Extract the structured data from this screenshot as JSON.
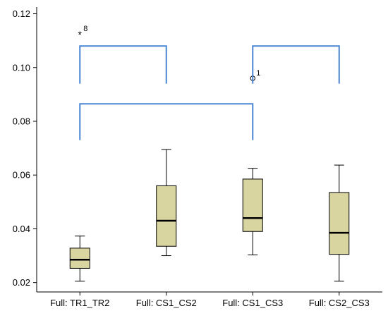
{
  "chart_data": {
    "type": "box",
    "title": "",
    "xlabel": "",
    "ylabel": "",
    "ylim": [
      0.0165,
      0.1225
    ],
    "yticks": [
      0.02,
      0.04,
      0.06,
      0.08,
      0.1,
      0.12
    ],
    "ytick_labels": [
      "0.02",
      "0.04",
      "0.06",
      "0.08",
      "0.10",
      "0.12"
    ],
    "categories": [
      "Full: TR1_TR2",
      "Full: CS1_CS2",
      "Full: CS1_CS3",
      "Full: CS2_CS3"
    ],
    "boxes": [
      {
        "min": 0.0205,
        "q1": 0.0253,
        "median": 0.0285,
        "q3": 0.0328,
        "max": 0.0373
      },
      {
        "min": 0.03,
        "q1": 0.0335,
        "median": 0.043,
        "q3": 0.056,
        "max": 0.0695
      },
      {
        "min": 0.0303,
        "q1": 0.039,
        "median": 0.044,
        "q3": 0.0585,
        "max": 0.0625
      },
      {
        "min": 0.0205,
        "q1": 0.0305,
        "median": 0.0385,
        "q3": 0.0535,
        "max": 0.0637
      }
    ],
    "outliers": [
      {
        "category_index": 0,
        "value": 0.1125,
        "marker": "*",
        "label": "8"
      },
      {
        "category_index": 2,
        "value": 0.096,
        "marker": "o",
        "label": "1"
      }
    ],
    "comparison_brackets": [
      {
        "from": 0,
        "to": 1,
        "y_top": 0.108,
        "y_bottom": 0.094
      },
      {
        "from": 2,
        "to": 3,
        "y_top": 0.108,
        "y_bottom": 0.094
      },
      {
        "from": 0,
        "to": 2,
        "y_top": 0.0865,
        "y_bottom": 0.073
      }
    ],
    "colors": {
      "box_fill": "#d9d5a0",
      "box_stroke": "#000000",
      "bracket": "#4a86d4",
      "axis": "#000000"
    },
    "grid": false,
    "legend": "none"
  }
}
